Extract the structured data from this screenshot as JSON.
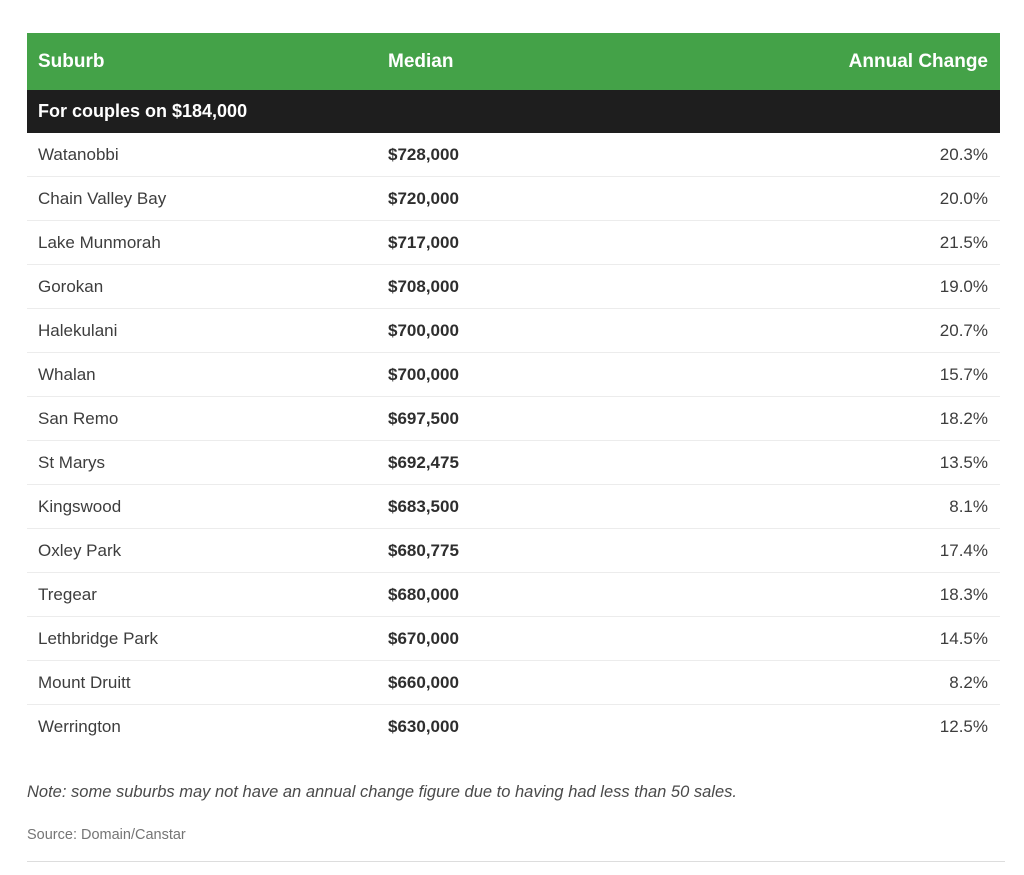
{
  "colors": {
    "header_green": "#44a248",
    "section_black": "#1e1e1e",
    "row_separator": "#ececec"
  },
  "table": {
    "columns": [
      "Suburb",
      "Median",
      "Annual Change"
    ],
    "section_label": "For couples on $184,000",
    "rows": [
      {
        "suburb": "Watanobbi",
        "median": "$728,000",
        "change": "20.3%"
      },
      {
        "suburb": "Chain Valley Bay",
        "median": "$720,000",
        "change": "20.0%"
      },
      {
        "suburb": "Lake Munmorah",
        "median": "$717,000",
        "change": "21.5%"
      },
      {
        "suburb": "Gorokan",
        "median": "$708,000",
        "change": "19.0%"
      },
      {
        "suburb": "Halekulani",
        "median": "$700,000",
        "change": "20.7%"
      },
      {
        "suburb": "Whalan",
        "median": "$700,000",
        "change": "15.7%"
      },
      {
        "suburb": "San Remo",
        "median": "$697,500",
        "change": "18.2%"
      },
      {
        "suburb": "St Marys",
        "median": "$692,475",
        "change": "13.5%"
      },
      {
        "suburb": "Kingswood",
        "median": "$683,500",
        "change": "8.1%"
      },
      {
        "suburb": "Oxley Park",
        "median": "$680,775",
        "change": "17.4%"
      },
      {
        "suburb": "Tregear",
        "median": "$680,000",
        "change": "18.3%"
      },
      {
        "suburb": "Lethbridge Park",
        "median": "$670,000",
        "change": "14.5%"
      },
      {
        "suburb": "Mount Druitt",
        "median": "$660,000",
        "change": "8.2%"
      },
      {
        "suburb": "Werrington",
        "median": "$630,000",
        "change": "12.5%"
      }
    ]
  },
  "note": "Note: some suburbs may not have an annual change figure due to having had less than 50 sales.",
  "source": "Source: Domain/Canstar",
  "chart_data": {
    "type": "table",
    "title": "For couples on $184,000",
    "columns": [
      "Suburb",
      "Median",
      "Annual Change"
    ],
    "suburbs": [
      "Watanobbi",
      "Chain Valley Bay",
      "Lake Munmorah",
      "Gorokan",
      "Halekulani",
      "Whalan",
      "San Remo",
      "St Marys",
      "Kingswood",
      "Oxley Park",
      "Tregear",
      "Lethbridge Park",
      "Mount Druitt",
      "Werrington"
    ],
    "median_values": [
      728000,
      720000,
      717000,
      708000,
      700000,
      700000,
      697500,
      692475,
      683500,
      680775,
      680000,
      670000,
      660000,
      630000
    ],
    "annual_change_pct": [
      20.3,
      20.0,
      21.5,
      19.0,
      20.7,
      15.7,
      18.2,
      13.5,
      8.1,
      17.4,
      18.3,
      14.5,
      8.2,
      12.5
    ]
  }
}
